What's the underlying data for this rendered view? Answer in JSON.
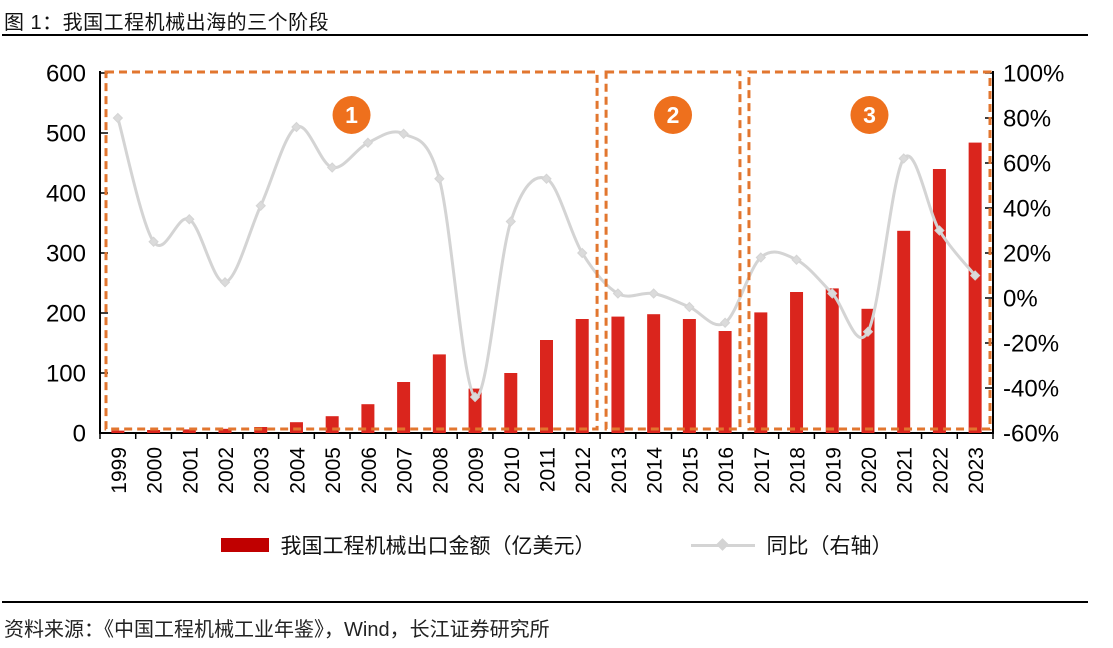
{
  "page": {
    "title": "图  1：我国工程机械出海的三个阶段",
    "source": "资料来源：《中国工程机械工业年鉴》，Wind，长江证券研究所"
  },
  "legend": {
    "bars_label": "我国工程机械出口金额（亿美元）",
    "line_label": "同比（右轴）"
  },
  "colors": {
    "bar_red": "#DA251D",
    "legend_red": "#C00000",
    "line_gray": "#D4D4D4",
    "marker_gray": "#DBDBDB",
    "phase_orange": "#E2762F",
    "badge_orange": "#EE701D",
    "axis_black": "#000000"
  },
  "chart_data": {
    "type": "bar+line combo",
    "title": "图  1：我国工程机械出海的三个阶段",
    "grid": "off",
    "legend_position": "bottom",
    "categories": [
      "1999",
      "2000",
      "2001",
      "2002",
      "2003",
      "2004",
      "2005",
      "2006",
      "2007",
      "2008",
      "2009",
      "2010",
      "2011",
      "2012",
      "2013",
      "2014",
      "2015",
      "2016",
      "2017",
      "2018",
      "2019",
      "2020",
      "2021",
      "2022",
      "2023"
    ],
    "series": [
      {
        "name": "我国工程机械出口金额（亿美元）",
        "type": "bar",
        "axis": "left",
        "values": [
          4,
          5,
          6,
          7,
          10,
          18,
          28,
          48,
          85,
          131,
          74,
          100,
          155,
          190,
          194,
          198,
          190,
          170,
          201,
          235,
          241,
          207,
          337,
          440,
          484
        ]
      },
      {
        "name": "同比（右轴）",
        "type": "line",
        "axis": "right",
        "unit": "%",
        "values": [
          80,
          25,
          35,
          7,
          41,
          76,
          58,
          69,
          73,
          53,
          -44,
          34,
          53,
          20,
          2,
          2,
          -4,
          -11,
          18,
          17,
          2,
          -15,
          62,
          30,
          10
        ]
      }
    ],
    "left_axis": {
      "min": 0,
      "max": 600,
      "step": 100
    },
    "right_axis": {
      "min": -60,
      "max": 100,
      "step": 20,
      "format": "percent"
    },
    "phases": [
      {
        "badge": "1",
        "from": "1999",
        "to": "2012"
      },
      {
        "badge": "2",
        "from": "2013",
        "to": "2016"
      },
      {
        "badge": "3",
        "from": "2017",
        "to": "2023"
      }
    ]
  }
}
